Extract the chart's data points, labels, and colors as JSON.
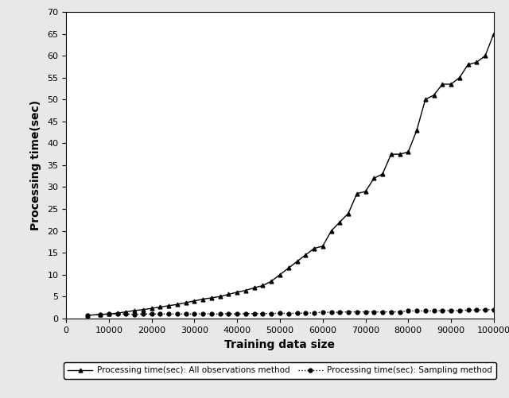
{
  "xlabel": "Training data size",
  "ylabel": "Processing time(sec)",
  "xlim": [
    0,
    100000
  ],
  "ylim": [
    0,
    70
  ],
  "xticks": [
    0,
    10000,
    20000,
    30000,
    40000,
    50000,
    60000,
    70000,
    80000,
    90000,
    100000
  ],
  "yticks": [
    0,
    5,
    10,
    15,
    20,
    25,
    30,
    35,
    40,
    45,
    50,
    55,
    60,
    65,
    70
  ],
  "bg_color": "#e8e8e8",
  "plot_bg_color": "#ffffff",
  "legend_labels": [
    "Processing time(sec): Sampling method",
    "Processing time(sec): All observations method"
  ],
  "all_obs_x": [
    5000,
    8000,
    10000,
    12000,
    14000,
    16000,
    18000,
    20000,
    22000,
    24000,
    26000,
    28000,
    30000,
    32000,
    34000,
    36000,
    38000,
    40000,
    42000,
    44000,
    46000,
    48000,
    50000,
    52000,
    54000,
    56000,
    58000,
    60000,
    62000,
    64000,
    66000,
    68000,
    70000,
    72000,
    74000,
    76000,
    78000,
    80000,
    82000,
    84000,
    86000,
    88000,
    90000,
    92000,
    94000,
    96000,
    98000,
    100000
  ],
  "all_obs_y": [
    0.7,
    0.9,
    1.0,
    1.2,
    1.5,
    1.8,
    2.0,
    2.3,
    2.6,
    2.9,
    3.2,
    3.6,
    4.0,
    4.4,
    4.7,
    5.0,
    5.5,
    6.0,
    6.4,
    7.0,
    7.5,
    8.5,
    10.0,
    11.5,
    13.0,
    14.5,
    16.0,
    16.5,
    20.0,
    22.0,
    24.0,
    28.5,
    29.0,
    32.0,
    33.0,
    37.5,
    37.5,
    38.0,
    43.0,
    50.0,
    51.0,
    53.5,
    53.5,
    55.0,
    58.0,
    58.5,
    60.0,
    65.0
  ],
  "sampling_x": [
    5000,
    8000,
    10000,
    12000,
    14000,
    16000,
    18000,
    20000,
    22000,
    24000,
    26000,
    28000,
    30000,
    32000,
    34000,
    36000,
    38000,
    40000,
    42000,
    44000,
    46000,
    48000,
    50000,
    52000,
    54000,
    56000,
    58000,
    60000,
    62000,
    64000,
    66000,
    68000,
    70000,
    72000,
    74000,
    76000,
    78000,
    80000,
    82000,
    84000,
    86000,
    88000,
    90000,
    92000,
    94000,
    96000,
    98000,
    100000
  ],
  "sampling_y": [
    0.7,
    0.9,
    1.0,
    1.0,
    1.0,
    0.9,
    1.0,
    1.0,
    1.0,
    1.0,
    1.0,
    1.0,
    1.0,
    1.1,
    1.0,
    1.0,
    1.1,
    1.0,
    1.1,
    1.1,
    1.1,
    1.1,
    1.2,
    1.1,
    1.2,
    1.2,
    1.3,
    1.4,
    1.4,
    1.4,
    1.5,
    1.5,
    1.5,
    1.5,
    1.5,
    1.5,
    1.5,
    1.7,
    1.7,
    1.7,
    1.7,
    1.8,
    1.8,
    1.8,
    1.9,
    1.9,
    2.0,
    2.0
  ]
}
